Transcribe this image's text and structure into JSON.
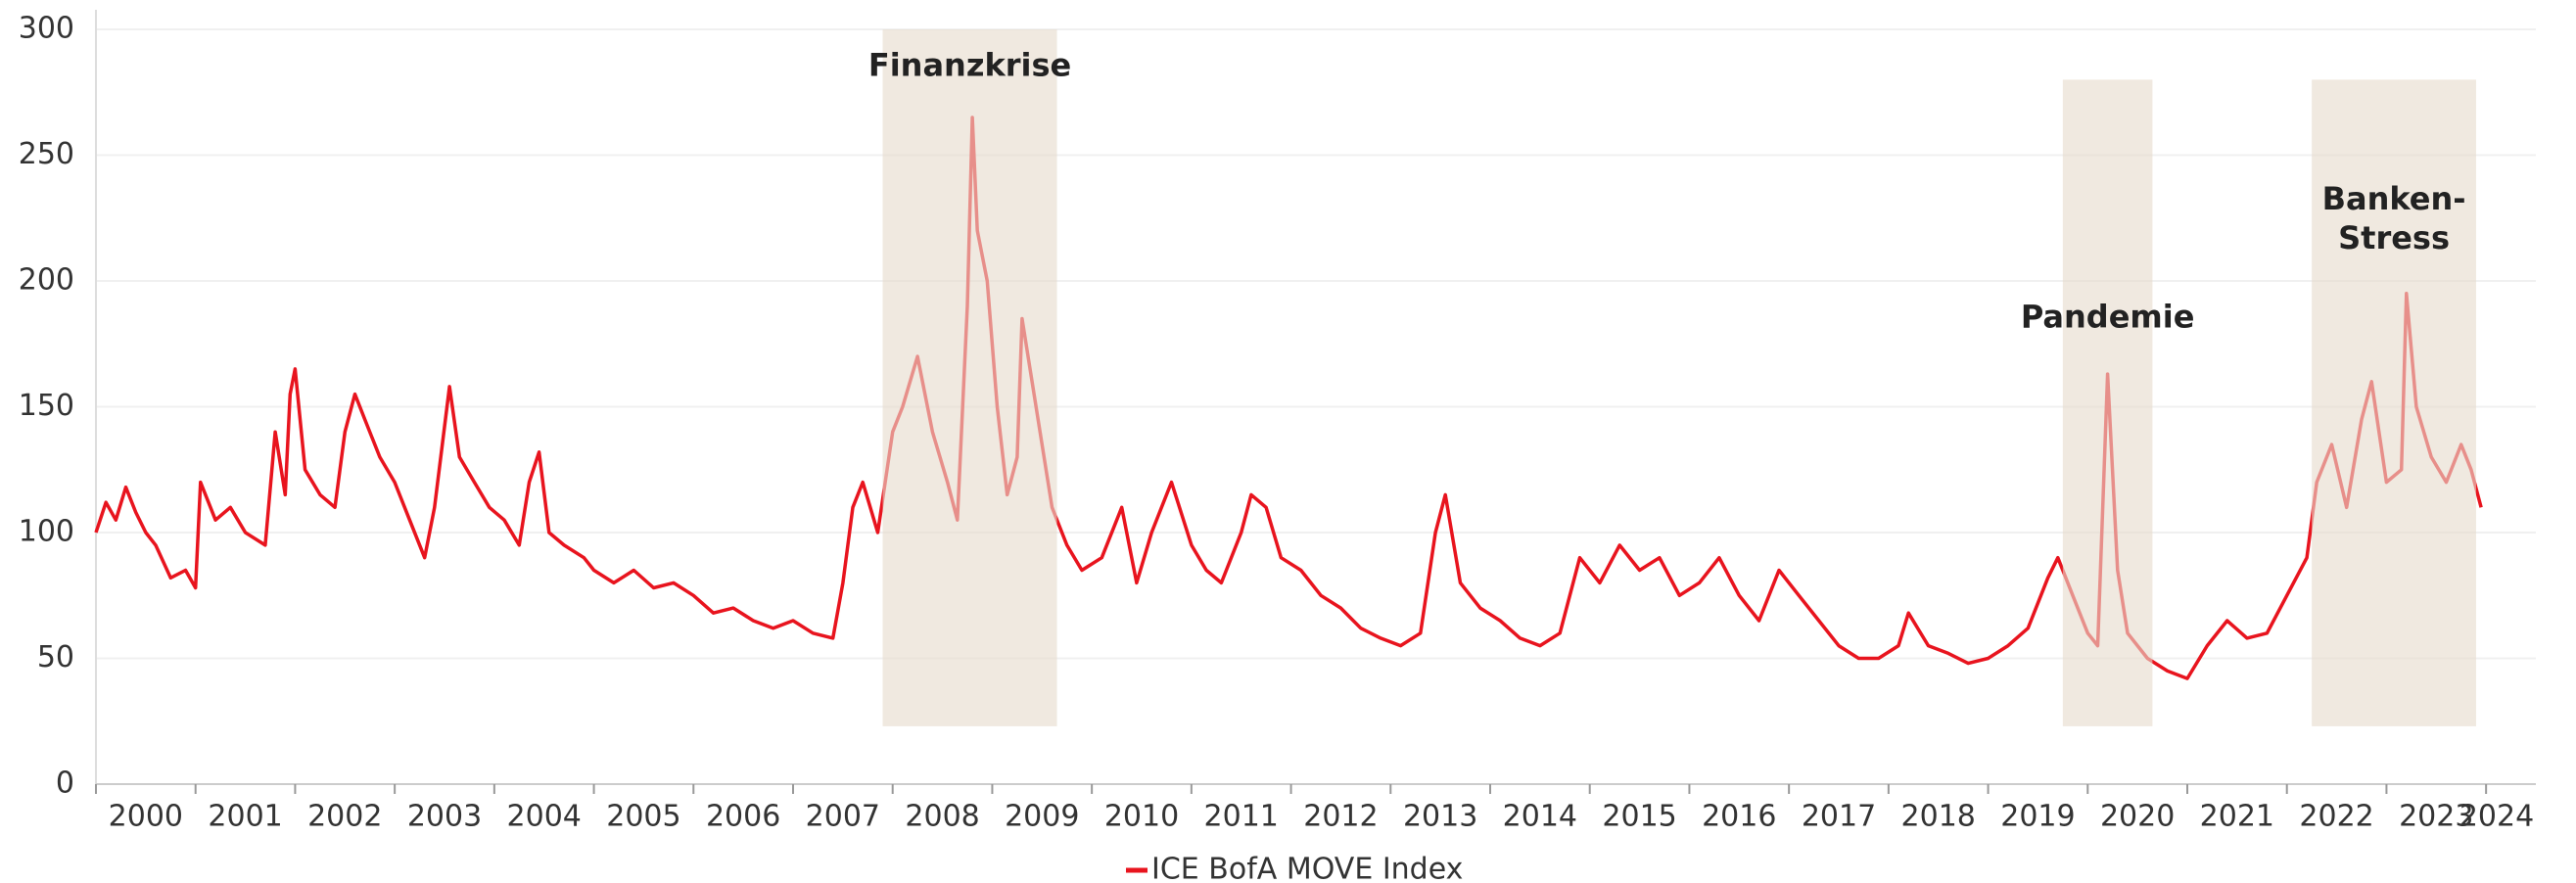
{
  "chart_data": {
    "type": "line",
    "x": [
      2000.0,
      2000.1,
      2000.2,
      2000.3,
      2000.4,
      2000.5,
      2000.6,
      2000.75,
      2000.9,
      2001.0,
      2001.05,
      2001.2,
      2001.35,
      2001.5,
      2001.7,
      2001.8,
      2001.9,
      2001.95,
      2002.0,
      2002.1,
      2002.25,
      2002.4,
      2002.5,
      2002.6,
      2002.7,
      2002.85,
      2003.0,
      2003.15,
      2003.3,
      2003.4,
      2003.55,
      2003.65,
      2003.8,
      2003.95,
      2004.1,
      2004.25,
      2004.35,
      2004.45,
      2004.55,
      2004.7,
      2004.9,
      2005.0,
      2005.2,
      2005.4,
      2005.6,
      2005.8,
      2006.0,
      2006.2,
      2006.4,
      2006.6,
      2006.8,
      2007.0,
      2007.2,
      2007.4,
      2007.5,
      2007.6,
      2007.7,
      2007.85,
      2008.0,
      2008.1,
      2008.25,
      2008.4,
      2008.55,
      2008.65,
      2008.75,
      2008.8,
      2008.85,
      2008.95,
      2009.05,
      2009.15,
      2009.25,
      2009.3,
      2009.4,
      2009.5,
      2009.6,
      2009.75,
      2009.9,
      2010.1,
      2010.3,
      2010.45,
      2010.6,
      2010.8,
      2011.0,
      2011.15,
      2011.3,
      2011.5,
      2011.6,
      2011.75,
      2011.9,
      2012.1,
      2012.3,
      2012.5,
      2012.7,
      2012.9,
      2013.1,
      2013.3,
      2013.45,
      2013.55,
      2013.7,
      2013.9,
      2014.1,
      2014.3,
      2014.5,
      2014.7,
      2014.9,
      2015.1,
      2015.3,
      2015.5,
      2015.7,
      2015.9,
      2016.1,
      2016.3,
      2016.5,
      2016.7,
      2016.9,
      2017.1,
      2017.3,
      2017.5,
      2017.7,
      2017.9,
      2018.1,
      2018.2,
      2018.4,
      2018.6,
      2018.8,
      2019.0,
      2019.2,
      2019.4,
      2019.6,
      2019.7,
      2019.85,
      2020.0,
      2020.1,
      2020.2,
      2020.3,
      2020.4,
      2020.6,
      2020.8,
      2021.0,
      2021.2,
      2021.4,
      2021.6,
      2021.8,
      2022.0,
      2022.2,
      2022.3,
      2022.45,
      2022.6,
      2022.75,
      2022.85,
      2023.0,
      2023.15,
      2023.2,
      2023.3,
      2023.45,
      2023.6,
      2023.75,
      2023.85,
      2023.95
    ],
    "series": [
      {
        "name": "ICE BofA MOVE Index",
        "color": "#e8141e",
        "values": [
          100,
          112,
          105,
          118,
          108,
          100,
          95,
          82,
          85,
          78,
          120,
          105,
          110,
          100,
          95,
          140,
          115,
          155,
          165,
          125,
          115,
          110,
          140,
          155,
          145,
          130,
          120,
          105,
          90,
          110,
          158,
          130,
          120,
          110,
          105,
          95,
          120,
          132,
          100,
          95,
          90,
          85,
          80,
          85,
          78,
          80,
          75,
          68,
          70,
          65,
          62,
          65,
          60,
          58,
          80,
          110,
          120,
          100,
          140,
          150,
          170,
          140,
          120,
          105,
          190,
          265,
          220,
          200,
          150,
          115,
          130,
          185,
          160,
          135,
          110,
          95,
          85,
          90,
          110,
          80,
          100,
          120,
          95,
          85,
          80,
          100,
          115,
          110,
          90,
          85,
          75,
          70,
          62,
          58,
          55,
          60,
          100,
          115,
          80,
          70,
          65,
          58,
          55,
          60,
          90,
          80,
          95,
          85,
          90,
          75,
          80,
          90,
          75,
          65,
          85,
          75,
          65,
          55,
          50,
          50,
          55,
          68,
          55,
          52,
          48,
          50,
          55,
          62,
          82,
          90,
          75,
          60,
          55,
          163,
          85,
          60,
          50,
          45,
          42,
          55,
          65,
          58,
          60,
          75,
          90,
          120,
          135,
          110,
          145,
          160,
          120,
          125,
          195,
          150,
          130,
          120,
          135,
          125,
          110
        ]
      }
    ],
    "xlim": [
      2000,
      2024.5
    ],
    "xticks": [
      2000,
      2001,
      2002,
      2003,
      2004,
      2005,
      2006,
      2007,
      2008,
      2009,
      2010,
      2011,
      2012,
      2013,
      2014,
      2015,
      2016,
      2017,
      2018,
      2019,
      2020,
      2021,
      2022,
      2023,
      2024
    ],
    "ylim": [
      0,
      300
    ],
    "yticks": [
      0,
      50,
      100,
      150,
      200,
      250,
      300
    ],
    "grid": true,
    "legend": "bottom",
    "annotations": [
      {
        "label": [
          "Finanzkrise"
        ],
        "x0": 2007.9,
        "x1": 2009.65,
        "y0": 23,
        "y1": 300,
        "color": "#e6dccd"
      },
      {
        "label": [
          "Pandemie"
        ],
        "x0": 2019.75,
        "x1": 2020.65,
        "y0": 23,
        "y1": 280,
        "color": "#e6dccd"
      },
      {
        "label": [
          "Banken-",
          "Stress"
        ],
        "x0": 2022.25,
        "x1": 2023.9,
        "y0": 23,
        "y1": 280,
        "color": "#e6dccd"
      }
    ]
  }
}
